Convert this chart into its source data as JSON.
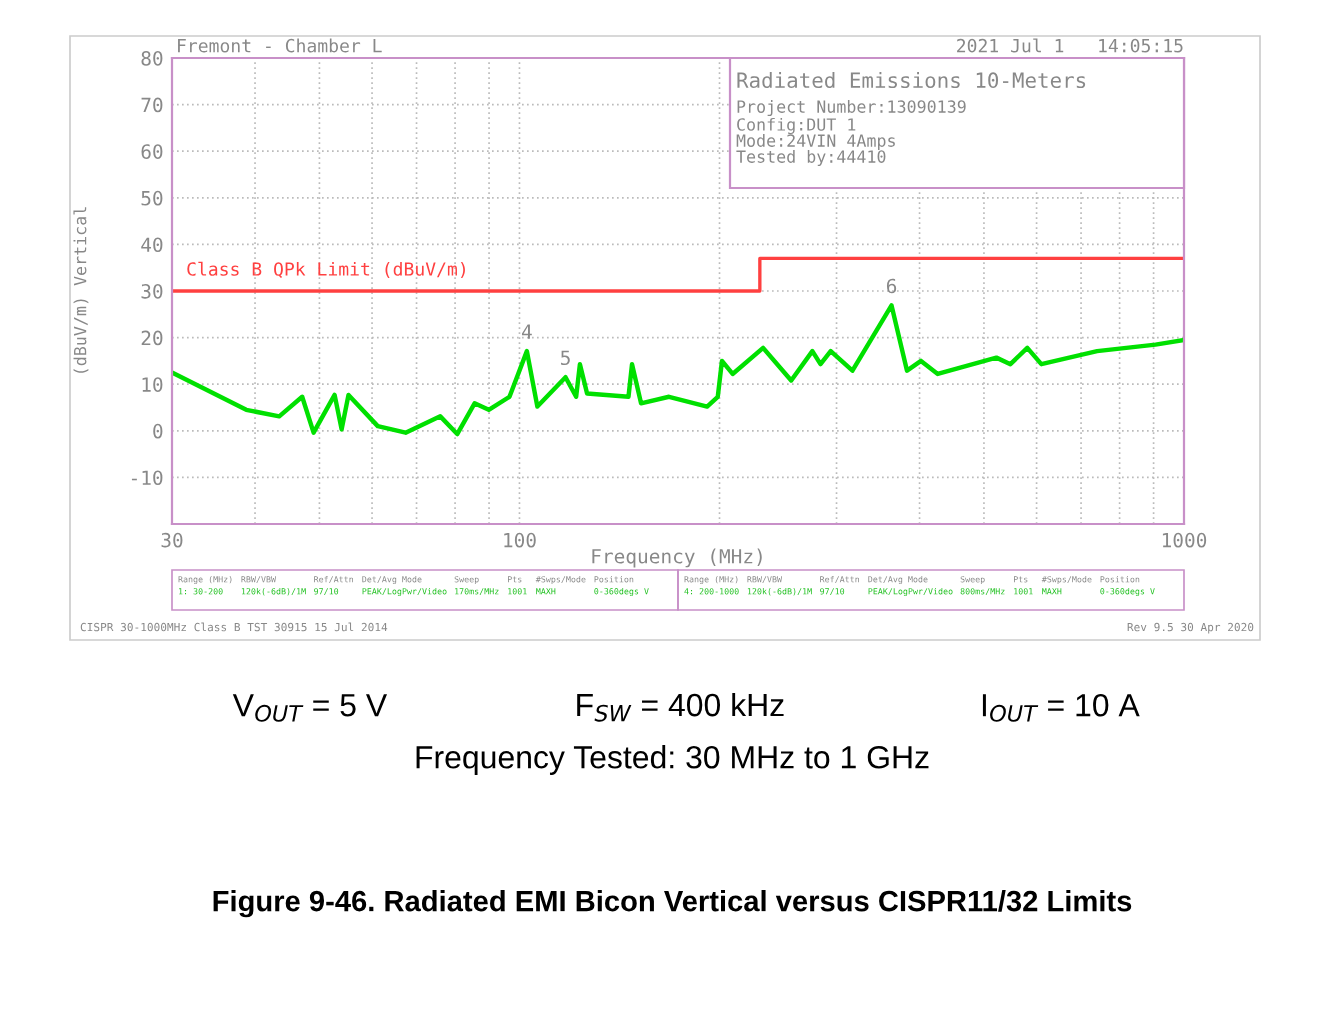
{
  "chart_data": {
    "type": "line",
    "title": "Figure 9-46. Radiated EMI Bicon Vertical versus CISPR11/32 Limits",
    "xlabel": "Frequency (MHz)",
    "ylabel": "(dBuV/m) Vertical",
    "log": "x",
    "grid": true,
    "legend": false,
    "xlim": [
      30,
      1000
    ],
    "ylim": [
      -20,
      80
    ],
    "xticks": [
      30,
      {
        "value": 40,
        "label": null
      },
      {
        "value": 50,
        "label": null
      },
      {
        "value": 60,
        "label": null
      },
      {
        "value": 70,
        "label": null
      },
      {
        "value": 80,
        "label": null
      },
      {
        "value": 90,
        "label": null
      },
      100,
      {
        "value": 200,
        "label": null
      },
      {
        "value": 300,
        "label": null
      },
      {
        "value": 400,
        "label": null
      },
      {
        "value": 500,
        "label": null
      },
      {
        "value": 600,
        "label": null
      },
      {
        "value": 700,
        "label": null
      },
      {
        "value": 800,
        "label": null
      },
      {
        "value": 900,
        "label": null
      },
      1000
    ],
    "yticks": [
      {
        "value": -20,
        "label": null
      },
      -10,
      0,
      10,
      20,
      30,
      40,
      50,
      60,
      70,
      80
    ],
    "series": [
      {
        "color": "#00e000",
        "x": [
          30,
          38.8,
          43.5,
          47.1,
          49.0,
          52.7,
          54.0,
          55.3,
          61.2,
          67.4,
          76.0,
          80.6,
          85.6,
          89.9,
          96.6,
          102.6,
          106.4,
          117.3,
          121.7,
          123.3,
          126.4,
          145.9,
          147.7,
          152.4,
          167.9,
          191.6,
          198.8,
          201.7,
          209.3,
          232.6,
          256.4,
          275.9,
          283.8,
          294,
          317,
          363,
          383,
          402,
          426,
          522,
          548,
          581,
          610,
          740,
          906,
          1000
        ],
        "values": [
          12.5,
          4.5,
          3.1,
          7.3,
          -0.4,
          7.7,
          0.3,
          7.7,
          1.0,
          -0.4,
          3.1,
          -0.7,
          5.9,
          4.5,
          7.3,
          17.1,
          5.2,
          11.5,
          7.3,
          14.3,
          8.0,
          7.3,
          14.3,
          5.9,
          7.3,
          5.2,
          7.3,
          15.0,
          12.2,
          17.8,
          10.8,
          17.1,
          14.3,
          17.1,
          12.9,
          26.9,
          12.9,
          15.0,
          12.2,
          15.7,
          14.3,
          17.8,
          14.3,
          17.1,
          18.5,
          19.5
        ]
      },
      {
        "type": "step",
        "name": "Class B QPk Limit (dBuV/m)",
        "color": "#ff4040",
        "x": [
          30,
          230,
          1000
        ],
        "values": [
          30,
          37,
          37
        ]
      }
    ],
    "annotations": [
      "Fremont - Chamber L",
      "2021 Jul 1   14:05:15",
      "Radiated Emissions 10-Meters",
      "Project Number:13090139",
      "Config:DUT 1",
      "Mode:24VIN 4Amps",
      "Tested by:44410",
      "CISPR 30-1000MHz Class B TST 30915 15 Jul 2014",
      "Rev 9.5 30 Apr 2020",
      "V$_{OUT}$ = 5 V",
      "F$_{SW}$ = 400 kHz",
      "I$_{OUT}$ = 10 A",
      "Frequency Tested: 30 MHz to 1 GHz",
      "Range (MHz)",
      "RBW/VBW",
      "Ref/Attn",
      "Det/Avg Mode",
      "Sweep",
      "Pts",
      "#Swps/Mode",
      "Position",
      "1: 30-200",
      "120k(-6dB)/1M",
      "97/10",
      "PEAK/LogPwr/Video",
      "170ms/MHz",
      "1001",
      "MAXH",
      "0-360degs V",
      "Range (MHz)",
      "RBW/VBW",
      "Ref/Attn",
      "Det/Avg Mode",
      "Sweep",
      "Pts",
      "#Swps/Mode",
      "Position",
      "4: 200-1000",
      "120k(-6dB)/1M",
      "97/10",
      "PEAK/LogPwr/Video",
      "800ms/MHz",
      "1001",
      "MAXH",
      "0-360degs V",
      {
        "text": "4",
        "x": 102.6,
        "y": 17.1
      },
      {
        "text": "5",
        "x": 117.3,
        "y": 11.5
      },
      {
        "text": "6",
        "x": 363,
        "y": 26.9
      }
    ]
  }
}
